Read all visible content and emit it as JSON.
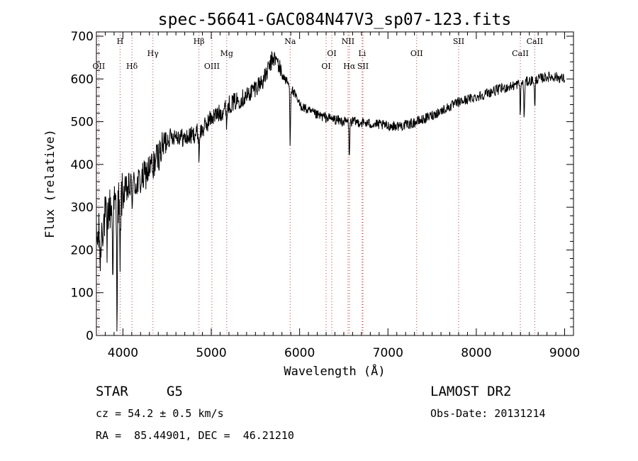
{
  "chart_data": {
    "type": "line",
    "title": "spec-56641-GAC084N47V3_sp07-123.fits",
    "xlabel": "Wavelength (Å)",
    "ylabel": "Flux (relative)",
    "xlim": [
      3700,
      9100
    ],
    "ylim": [
      0,
      710
    ],
    "xticks": [
      4000,
      5000,
      6000,
      7000,
      8000,
      9000
    ],
    "yticks": [
      0,
      100,
      200,
      300,
      400,
      500,
      600,
      700
    ],
    "grid": false,
    "spectrum": {
      "anchors": [
        [
          3700,
          220
        ],
        [
          3760,
          250
        ],
        [
          3820,
          290
        ],
        [
          3880,
          300
        ],
        [
          3950,
          310
        ],
        [
          4000,
          330
        ],
        [
          4100,
          350
        ],
        [
          4200,
          360
        ],
        [
          4300,
          390
        ],
        [
          4400,
          420
        ],
        [
          4500,
          460
        ],
        [
          4600,
          470
        ],
        [
          4700,
          460
        ],
        [
          4800,
          470
        ],
        [
          4900,
          480
        ],
        [
          5000,
          510
        ],
        [
          5100,
          520
        ],
        [
          5200,
          540
        ],
        [
          5300,
          550
        ],
        [
          5400,
          560
        ],
        [
          5500,
          580
        ],
        [
          5600,
          600
        ],
        [
          5700,
          650
        ],
        [
          5750,
          640
        ],
        [
          5800,
          610
        ],
        [
          5900,
          580
        ],
        [
          6000,
          540
        ],
        [
          6100,
          525
        ],
        [
          6200,
          515
        ],
        [
          6300,
          510
        ],
        [
          6400,
          505
        ],
        [
          6500,
          500
        ],
        [
          6600,
          500
        ],
        [
          6700,
          498
        ],
        [
          6800,
          495
        ],
        [
          6900,
          493
        ],
        [
          7000,
          490
        ],
        [
          7100,
          490
        ],
        [
          7200,
          492
        ],
        [
          7300,
          498
        ],
        [
          7400,
          505
        ],
        [
          7500,
          515
        ],
        [
          7600,
          525
        ],
        [
          7700,
          535
        ],
        [
          7800,
          545
        ],
        [
          7900,
          552
        ],
        [
          8000,
          558
        ],
        [
          8100,
          565
        ],
        [
          8200,
          572
        ],
        [
          8300,
          578
        ],
        [
          8400,
          583
        ],
        [
          8500,
          590
        ],
        [
          8600,
          595
        ],
        [
          8700,
          600
        ],
        [
          8800,
          605
        ],
        [
          8900,
          605
        ],
        [
          9000,
          600
        ]
      ],
      "absorption_features": [
        [
          3745,
          90
        ],
        [
          3820,
          100
        ],
        [
          3885,
          150
        ],
        [
          3933,
          250
        ],
        [
          3968,
          180
        ],
        [
          4102,
          40
        ],
        [
          4340,
          40
        ],
        [
          4861,
          60
        ],
        [
          5175,
          40
        ],
        [
          5893,
          130
        ],
        [
          6563,
          90
        ],
        [
          8498,
          70
        ],
        [
          8542,
          90
        ],
        [
          8662,
          70
        ]
      ]
    },
    "lines": [
      {
        "label": "OII",
        "x": 3727,
        "row": 4
      },
      {
        "label": "H",
        "x": 3968,
        "row": 1
      },
      {
        "label": "Hδ",
        "x": 4102,
        "row": 4
      },
      {
        "label": "Hγ",
        "x": 4340,
        "row": 2
      },
      {
        "label": "Hβ",
        "x": 4861,
        "row": 1
      },
      {
        "label": "OIII",
        "x": 5007,
        "row": 4
      },
      {
        "label": "Mg",
        "x": 5175,
        "row": 2
      },
      {
        "label": "Na",
        "x": 5893,
        "row": 1
      },
      {
        "label": "OI",
        "x": 6300,
        "row": 4
      },
      {
        "label": "OI",
        "x": 6364,
        "row": 2
      },
      {
        "label": "NII",
        "x": 6548,
        "row": 1
      },
      {
        "label": "Hα",
        "x": 6563,
        "row": 4
      },
      {
        "label": "Li",
        "x": 6708,
        "row": 2
      },
      {
        "label": "SII",
        "x": 6717,
        "row": 4
      },
      {
        "label": "OII",
        "x": 7325,
        "row": 2
      },
      {
        "label": "SII",
        "x": 7800,
        "row": 1
      },
      {
        "label": "CaII",
        "x": 8498,
        "row": 2
      },
      {
        "label": "CaII",
        "x": 8662,
        "row": 1
      }
    ]
  },
  "info": {
    "object_class": "STAR",
    "subclass": "G5",
    "redshift": "cz = 54.2 ± 0.5 km/s",
    "coords": "RA =  85.44901, DEC =  46.21210",
    "survey": "LAMOST DR2",
    "obs_date": "Obs-Date: 20131214"
  }
}
